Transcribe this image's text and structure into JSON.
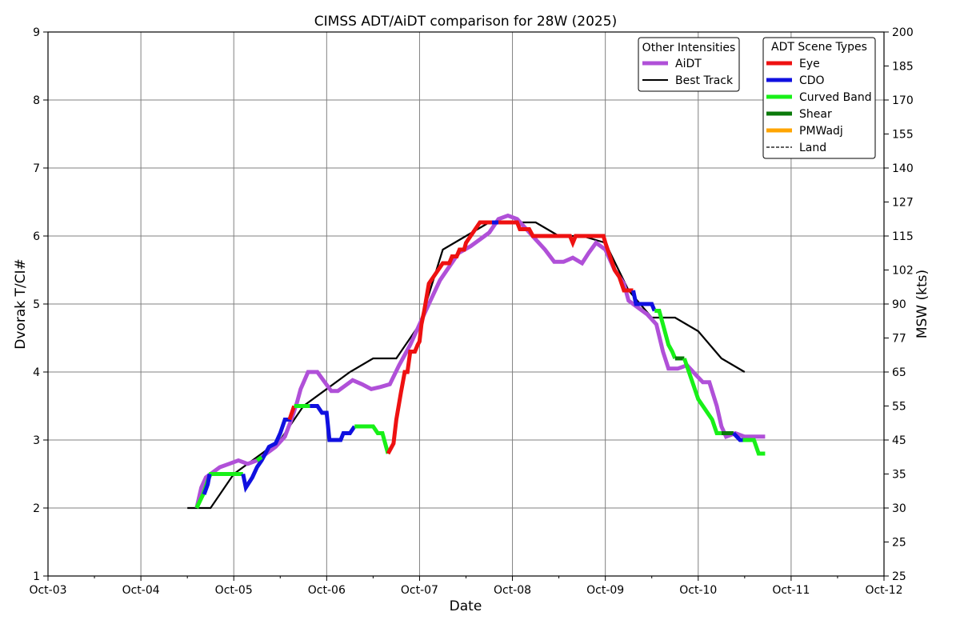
{
  "chart_data": {
    "type": "line",
    "title": "CIMSS ADT/AiDT comparison for 28W (2025)",
    "xlabel": "Date",
    "ylabel": "Dvorak T/CI#",
    "y2label": "MSW (kts)",
    "x_ticks": [
      "Oct-03",
      "Oct-04",
      "Oct-05",
      "Oct-06",
      "Oct-07",
      "Oct-08",
      "Oct-09",
      "Oct-10",
      "Oct-11",
      "Oct-12"
    ],
    "xlim": [
      0,
      9
    ],
    "ylim": [
      1,
      9
    ],
    "y_ticks": [
      "1",
      "2",
      "3",
      "4",
      "5",
      "6",
      "7",
      "8",
      "9"
    ],
    "y2_ticks": [
      {
        "t": 1.0,
        "label": "25"
      },
      {
        "t": 1.5,
        "label": "25"
      },
      {
        "t": 2.0,
        "label": "30"
      },
      {
        "t": 2.5,
        "label": "35"
      },
      {
        "t": 3.0,
        "label": "45"
      },
      {
        "t": 3.5,
        "label": "55"
      },
      {
        "t": 4.0,
        "label": "65"
      },
      {
        "t": 4.5,
        "label": "77"
      },
      {
        "t": 5.0,
        "label": "90"
      },
      {
        "t": 5.5,
        "label": "102"
      },
      {
        "t": 6.0,
        "label": "115"
      },
      {
        "t": 6.5,
        "label": "127"
      },
      {
        "t": 7.0,
        "label": "140"
      },
      {
        "t": 7.5,
        "label": "155"
      },
      {
        "t": 8.0,
        "label": "170"
      },
      {
        "t": 8.5,
        "label": "185"
      },
      {
        "t": 9.0,
        "label": "200"
      }
    ],
    "grid": true,
    "legend_other": {
      "title": "Other Intensities",
      "entries": [
        {
          "label": "AiDT",
          "color": "#b050d8",
          "style": "thick"
        },
        {
          "label": "Best Track",
          "color": "#000000",
          "style": "thin"
        }
      ]
    },
    "legend_scene": {
      "title": "ADT Scene Types",
      "entries": [
        {
          "label": "Eye",
          "color": "#ee1111",
          "style": "thick"
        },
        {
          "label": "CDO",
          "color": "#1010e0",
          "style": "thick"
        },
        {
          "label": "Curved Band",
          "color": "#18f018",
          "style": "thick"
        },
        {
          "label": "Shear",
          "color": "#0a7a0a",
          "style": "thick"
        },
        {
          "label": "PMWadj",
          "color": "#ffa500",
          "style": "thick"
        },
        {
          "label": "Land",
          "color": "#000000",
          "style": "dashed"
        }
      ]
    },
    "series": [
      {
        "name": "Best Track",
        "color": "#000000",
        "points": [
          [
            1.5,
            2.0
          ],
          [
            1.75,
            2.0
          ],
          [
            2.0,
            2.5
          ],
          [
            2.25,
            2.75
          ],
          [
            2.5,
            3.0
          ],
          [
            2.75,
            3.5
          ],
          [
            3.0,
            3.75
          ],
          [
            3.25,
            4.0
          ],
          [
            3.5,
            4.2
          ],
          [
            3.75,
            4.2
          ],
          [
            4.0,
            4.7
          ],
          [
            4.25,
            5.8
          ],
          [
            4.5,
            6.0
          ],
          [
            4.75,
            6.2
          ],
          [
            5.0,
            6.2
          ],
          [
            5.25,
            6.2
          ],
          [
            5.5,
            6.0
          ],
          [
            5.75,
            6.0
          ],
          [
            6.0,
            5.9
          ],
          [
            6.25,
            5.2
          ],
          [
            6.5,
            4.8
          ],
          [
            6.75,
            4.8
          ],
          [
            7.0,
            4.6
          ],
          [
            7.25,
            4.2
          ],
          [
            7.5,
            4.0
          ]
        ]
      },
      {
        "name": "AiDT",
        "color": "#b050d8",
        "points": [
          [
            1.6,
            2.0
          ],
          [
            1.65,
            2.3
          ],
          [
            1.7,
            2.45
          ],
          [
            1.75,
            2.5
          ],
          [
            1.85,
            2.6
          ],
          [
            1.95,
            2.65
          ],
          [
            2.05,
            2.7
          ],
          [
            2.15,
            2.65
          ],
          [
            2.25,
            2.7
          ],
          [
            2.35,
            2.8
          ],
          [
            2.45,
            2.9
          ],
          [
            2.55,
            3.05
          ],
          [
            2.62,
            3.3
          ],
          [
            2.68,
            3.55
          ],
          [
            2.72,
            3.75
          ],
          [
            2.8,
            4.0
          ],
          [
            2.9,
            4.0
          ],
          [
            2.98,
            3.85
          ],
          [
            3.05,
            3.72
          ],
          [
            3.12,
            3.72
          ],
          [
            3.2,
            3.8
          ],
          [
            3.28,
            3.88
          ],
          [
            3.38,
            3.82
          ],
          [
            3.48,
            3.75
          ],
          [
            3.58,
            3.78
          ],
          [
            3.68,
            3.82
          ],
          [
            3.78,
            4.1
          ],
          [
            3.9,
            4.4
          ],
          [
            4.0,
            4.7
          ],
          [
            4.1,
            5.0
          ],
          [
            4.22,
            5.35
          ],
          [
            4.32,
            5.55
          ],
          [
            4.42,
            5.75
          ],
          [
            4.55,
            5.85
          ],
          [
            4.65,
            5.95
          ],
          [
            4.75,
            6.05
          ],
          [
            4.85,
            6.25
          ],
          [
            4.95,
            6.3
          ],
          [
            5.05,
            6.25
          ],
          [
            5.15,
            6.1
          ],
          [
            5.25,
            5.95
          ],
          [
            5.35,
            5.8
          ],
          [
            5.45,
            5.62
          ],
          [
            5.55,
            5.62
          ],
          [
            5.65,
            5.68
          ],
          [
            5.75,
            5.6
          ],
          [
            5.82,
            5.75
          ],
          [
            5.9,
            5.9
          ],
          [
            6.0,
            5.8
          ],
          [
            6.1,
            5.5
          ],
          [
            6.2,
            5.3
          ],
          [
            6.25,
            5.05
          ],
          [
            6.35,
            4.95
          ],
          [
            6.45,
            4.85
          ],
          [
            6.55,
            4.7
          ],
          [
            6.62,
            4.3
          ],
          [
            6.68,
            4.05
          ],
          [
            6.78,
            4.05
          ],
          [
            6.88,
            4.1
          ],
          [
            6.98,
            3.95
          ],
          [
            7.05,
            3.85
          ],
          [
            7.12,
            3.85
          ],
          [
            7.2,
            3.5
          ],
          [
            7.25,
            3.2
          ],
          [
            7.3,
            3.05
          ],
          [
            7.4,
            3.1
          ],
          [
            7.5,
            3.05
          ],
          [
            7.6,
            3.05
          ],
          [
            7.72,
            3.05
          ]
        ]
      },
      {
        "name": "Curved Band",
        "color": "#18f018",
        "points": [
          [
            1.6,
            2.0
          ],
          [
            1.67,
            2.2
          ],
          [
            1.72,
            2.4
          ],
          [
            1.75,
            2.5
          ],
          [
            2.1,
            2.5
          ]
        ]
      },
      {
        "name": "CDO",
        "color": "#1010e0",
        "points": [
          [
            1.68,
            2.2
          ],
          [
            1.72,
            2.35
          ],
          [
            1.74,
            2.5
          ]
        ]
      },
      {
        "name": "CDO",
        "color": "#1010e0",
        "points": [
          [
            2.1,
            2.5
          ],
          [
            2.13,
            2.3
          ],
          [
            2.2,
            2.45
          ],
          [
            2.25,
            2.6
          ],
          [
            2.3,
            2.7
          ],
          [
            2.38,
            2.9
          ],
          [
            2.45,
            2.95
          ],
          [
            2.5,
            3.1
          ],
          [
            2.55,
            3.3
          ],
          [
            2.62,
            3.3
          ]
        ]
      },
      {
        "name": "Curved Band",
        "color": "#18f018",
        "points": [
          [
            2.25,
            2.7
          ],
          [
            2.3,
            2.75
          ]
        ]
      },
      {
        "name": "Eye",
        "color": "#ee1111",
        "points": [
          [
            2.6,
            3.3
          ],
          [
            2.65,
            3.5
          ]
        ]
      },
      {
        "name": "Curved Band",
        "color": "#18f018",
        "points": [
          [
            2.65,
            3.5
          ],
          [
            2.82,
            3.5
          ]
        ]
      },
      {
        "name": "CDO",
        "color": "#1010e0",
        "points": [
          [
            2.82,
            3.5
          ],
          [
            2.9,
            3.5
          ],
          [
            2.95,
            3.4
          ],
          [
            3.0,
            3.4
          ],
          [
            3.03,
            3.0
          ],
          [
            3.15,
            3.0
          ],
          [
            3.18,
            3.1
          ],
          [
            3.25,
            3.1
          ],
          [
            3.3,
            3.2
          ]
        ]
      },
      {
        "name": "Curved Band",
        "color": "#18f018",
        "points": [
          [
            3.3,
            3.2
          ],
          [
            3.5,
            3.2
          ],
          [
            3.55,
            3.1
          ],
          [
            3.6,
            3.1
          ],
          [
            3.66,
            2.8
          ]
        ]
      },
      {
        "name": "Eye",
        "color": "#ee1111",
        "points": [
          [
            3.66,
            2.8
          ],
          [
            3.72,
            2.95
          ],
          [
            3.75,
            3.3
          ],
          [
            3.8,
            3.7
          ],
          [
            3.84,
            4.0
          ],
          [
            3.87,
            4.0
          ],
          [
            3.9,
            4.3
          ],
          [
            3.95,
            4.3
          ],
          [
            3.98,
            4.4
          ],
          [
            4.0,
            4.45
          ],
          [
            4.02,
            4.7
          ],
          [
            4.05,
            4.9
          ],
          [
            4.1,
            5.3
          ],
          [
            4.15,
            5.4
          ],
          [
            4.2,
            5.5
          ],
          [
            4.25,
            5.6
          ],
          [
            4.32,
            5.6
          ],
          [
            4.35,
            5.7
          ],
          [
            4.4,
            5.7
          ],
          [
            4.43,
            5.8
          ],
          [
            4.48,
            5.8
          ],
          [
            4.5,
            5.9
          ],
          [
            4.55,
            6.0
          ],
          [
            4.6,
            6.1
          ],
          [
            4.65,
            6.2
          ],
          [
            4.78,
            6.2
          ]
        ]
      },
      {
        "name": "CDO",
        "color": "#1010e0",
        "points": [
          [
            4.78,
            6.2
          ],
          [
            4.85,
            6.2
          ]
        ]
      },
      {
        "name": "Eye",
        "color": "#ee1111",
        "points": [
          [
            4.85,
            6.2
          ],
          [
            5.05,
            6.2
          ],
          [
            5.08,
            6.1
          ],
          [
            5.18,
            6.1
          ],
          [
            5.22,
            6.0
          ],
          [
            5.5,
            6.0
          ],
          [
            5.62,
            6.0
          ],
          [
            5.65,
            5.9
          ],
          [
            5.68,
            6.0
          ],
          [
            5.75,
            6.0
          ],
          [
            5.98,
            6.0
          ],
          [
            6.0,
            5.9
          ],
          [
            6.05,
            5.7
          ],
          [
            6.1,
            5.5
          ],
          [
            6.15,
            5.4
          ],
          [
            6.2,
            5.2
          ],
          [
            6.3,
            5.2
          ]
        ]
      },
      {
        "name": "CDO",
        "color": "#1010e0",
        "points": [
          [
            6.3,
            5.2
          ],
          [
            6.33,
            5.0
          ],
          [
            6.5,
            5.0
          ],
          [
            6.53,
            4.9
          ]
        ]
      },
      {
        "name": "Curved Band",
        "color": "#18f018",
        "points": [
          [
            6.53,
            4.9
          ],
          [
            6.58,
            4.9
          ],
          [
            6.62,
            4.7
          ],
          [
            6.68,
            4.4
          ],
          [
            6.72,
            4.3
          ],
          [
            6.75,
            4.2
          ]
        ]
      },
      {
        "name": "Shear",
        "color": "#0a7a0a",
        "points": [
          [
            6.75,
            4.2
          ],
          [
            6.85,
            4.2
          ]
        ]
      },
      {
        "name": "Curved Band",
        "color": "#18f018",
        "points": [
          [
            6.85,
            4.2
          ],
          [
            6.9,
            4.0
          ],
          [
            6.95,
            3.8
          ],
          [
            7.0,
            3.6
          ],
          [
            7.05,
            3.5
          ],
          [
            7.1,
            3.4
          ],
          [
            7.15,
            3.3
          ],
          [
            7.2,
            3.1
          ],
          [
            7.25,
            3.1
          ]
        ]
      },
      {
        "name": "Shear",
        "color": "#0a7a0a",
        "points": [
          [
            7.25,
            3.1
          ],
          [
            7.38,
            3.1
          ]
        ]
      },
      {
        "name": "CDO",
        "color": "#1010e0",
        "points": [
          [
            7.38,
            3.1
          ],
          [
            7.45,
            3.0
          ],
          [
            7.48,
            3.0
          ]
        ]
      },
      {
        "name": "Curved Band",
        "color": "#18f018",
        "points": [
          [
            7.48,
            3.0
          ],
          [
            7.6,
            3.0
          ],
          [
            7.65,
            2.8
          ],
          [
            7.72,
            2.8
          ]
        ]
      }
    ]
  }
}
